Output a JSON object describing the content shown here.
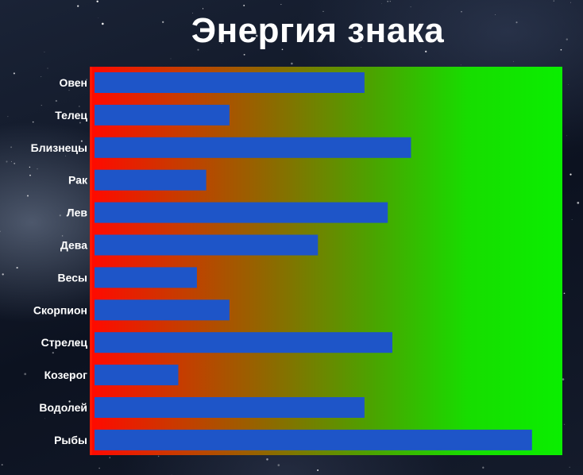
{
  "colors": {
    "bar": "#1e55c8",
    "gradient_start": "#ff0a00",
    "gradient_end": "#0aee00",
    "title": "#ffffff",
    "labels": "#ffffff"
  },
  "chart_data": {
    "type": "bar",
    "orientation": "horizontal",
    "title": "Энергия знака",
    "xlabel": "",
    "ylabel": "",
    "grid": false,
    "xlim": [
      0,
      100
    ],
    "categories": [
      "Овен",
      "Телец",
      "Близнецы",
      "Рак",
      "Лев",
      "Дева",
      "Весы",
      "Скорпион",
      "Стрелец",
      "Козерог",
      "Водолей",
      "Рыбы"
    ],
    "values": [
      58,
      29,
      68,
      24,
      63,
      48,
      22,
      29,
      64,
      18,
      58,
      94
    ]
  }
}
